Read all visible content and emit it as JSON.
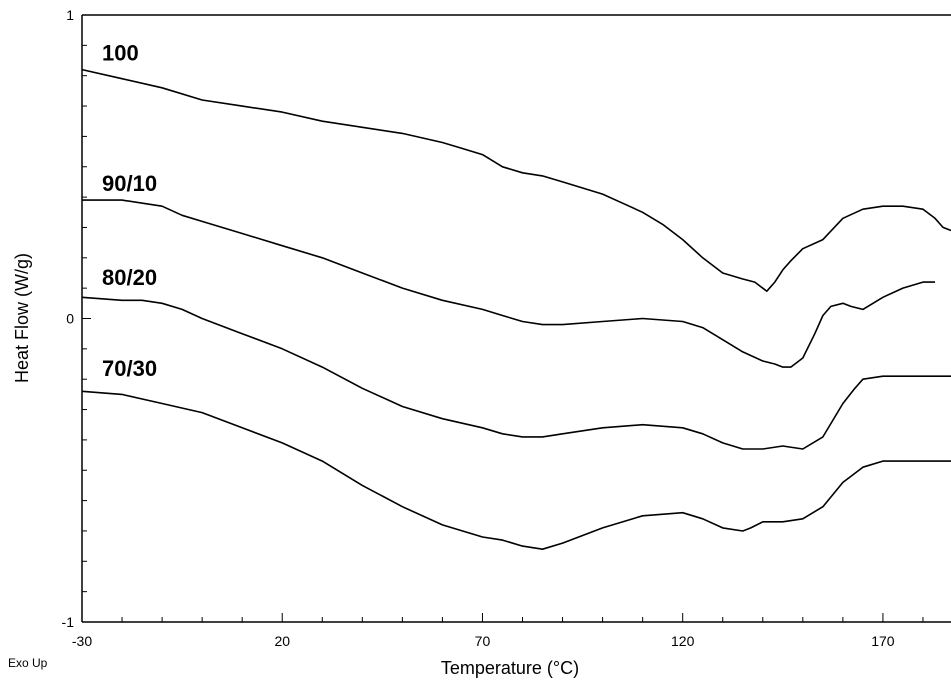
{
  "chart_data": {
    "type": "line",
    "title": "",
    "xlabel": "Temperature (°C)",
    "ylabel": "Heat Flow (W/g)",
    "footnote": "Exo Up",
    "xlim": [
      -30,
      187
    ],
    "ylim": [
      -1,
      1
    ],
    "xticks": [
      -30,
      20,
      70,
      120,
      170
    ],
    "yticks": [
      -1,
      0,
      1
    ],
    "series": [
      {
        "name": "100",
        "label_at": [
          -25,
          0.85
        ],
        "x": [
          -30,
          -20,
          -10,
          0,
          10,
          20,
          30,
          40,
          50,
          60,
          65,
          70,
          75,
          80,
          85,
          90,
          95,
          100,
          105,
          110,
          115,
          120,
          125,
          130,
          135,
          138,
          141,
          143,
          145,
          147,
          150,
          155,
          160,
          165,
          170,
          175,
          180,
          183,
          185,
          187
        ],
        "y": [
          0.82,
          0.79,
          0.76,
          0.72,
          0.7,
          0.68,
          0.65,
          0.63,
          0.61,
          0.58,
          0.56,
          0.54,
          0.5,
          0.48,
          0.47,
          0.45,
          0.43,
          0.41,
          0.38,
          0.35,
          0.31,
          0.26,
          0.2,
          0.15,
          0.13,
          0.12,
          0.09,
          0.12,
          0.16,
          0.19,
          0.23,
          0.26,
          0.33,
          0.36,
          0.37,
          0.37,
          0.36,
          0.33,
          0.3,
          0.29
        ]
      },
      {
        "name": "90/10",
        "label_at": [
          -25,
          0.42
        ],
        "x": [
          -30,
          -20,
          -10,
          -5,
          0,
          10,
          20,
          30,
          40,
          50,
          60,
          70,
          75,
          80,
          85,
          90,
          100,
          110,
          120,
          125,
          130,
          135,
          140,
          143,
          145,
          147,
          150,
          153,
          155,
          157,
          160,
          162,
          165,
          170,
          175,
          180,
          183
        ],
        "y": [
          0.39,
          0.39,
          0.37,
          0.34,
          0.32,
          0.28,
          0.24,
          0.2,
          0.15,
          0.1,
          0.06,
          0.03,
          0.01,
          -0.01,
          -0.02,
          -0.02,
          -0.01,
          0.0,
          -0.01,
          -0.03,
          -0.07,
          -0.11,
          -0.14,
          -0.15,
          -0.16,
          -0.16,
          -0.13,
          -0.05,
          0.01,
          0.04,
          0.05,
          0.04,
          0.03,
          0.07,
          0.1,
          0.12,
          0.12
        ]
      },
      {
        "name": "80/20",
        "label_at": [
          -25,
          0.11
        ],
        "x": [
          -30,
          -20,
          -15,
          -10,
          -5,
          0,
          10,
          20,
          30,
          40,
          50,
          60,
          70,
          75,
          80,
          81,
          85,
          90,
          100,
          110,
          120,
          125,
          130,
          135,
          137,
          140,
          145,
          150,
          155,
          160,
          163,
          165,
          170,
          175,
          180,
          187
        ],
        "y": [
          0.07,
          0.06,
          0.06,
          0.05,
          0.03,
          0.0,
          -0.05,
          -0.1,
          -0.16,
          -0.23,
          -0.29,
          -0.33,
          -0.36,
          -0.38,
          -0.39,
          -0.39,
          -0.39,
          -0.38,
          -0.36,
          -0.35,
          -0.36,
          -0.38,
          -0.41,
          -0.43,
          -0.43,
          -0.43,
          -0.42,
          -0.43,
          -0.39,
          -0.28,
          -0.23,
          -0.2,
          -0.19,
          -0.19,
          -0.19,
          -0.19
        ]
      },
      {
        "name": "70/30",
        "label_at": [
          -25,
          -0.19
        ],
        "x": [
          -30,
          -20,
          -10,
          0,
          10,
          20,
          30,
          40,
          50,
          60,
          70,
          75,
          80,
          85,
          90,
          100,
          110,
          120,
          125,
          130,
          135,
          137,
          140,
          145,
          150,
          155,
          160,
          165,
          170,
          175,
          180,
          187
        ],
        "y": [
          -0.24,
          -0.25,
          -0.28,
          -0.31,
          -0.36,
          -0.41,
          -0.47,
          -0.55,
          -0.62,
          -0.68,
          -0.72,
          -0.73,
          -0.75,
          -0.76,
          -0.74,
          -0.69,
          -0.65,
          -0.64,
          -0.66,
          -0.69,
          -0.7,
          -0.69,
          -0.67,
          -0.67,
          -0.66,
          -0.62,
          -0.54,
          -0.49,
          -0.47,
          -0.47,
          -0.47,
          -0.47
        ]
      }
    ],
    "colors": {
      "line": "#000000",
      "axis": "#000000",
      "background": "#ffffff"
    },
    "grid": false
  }
}
